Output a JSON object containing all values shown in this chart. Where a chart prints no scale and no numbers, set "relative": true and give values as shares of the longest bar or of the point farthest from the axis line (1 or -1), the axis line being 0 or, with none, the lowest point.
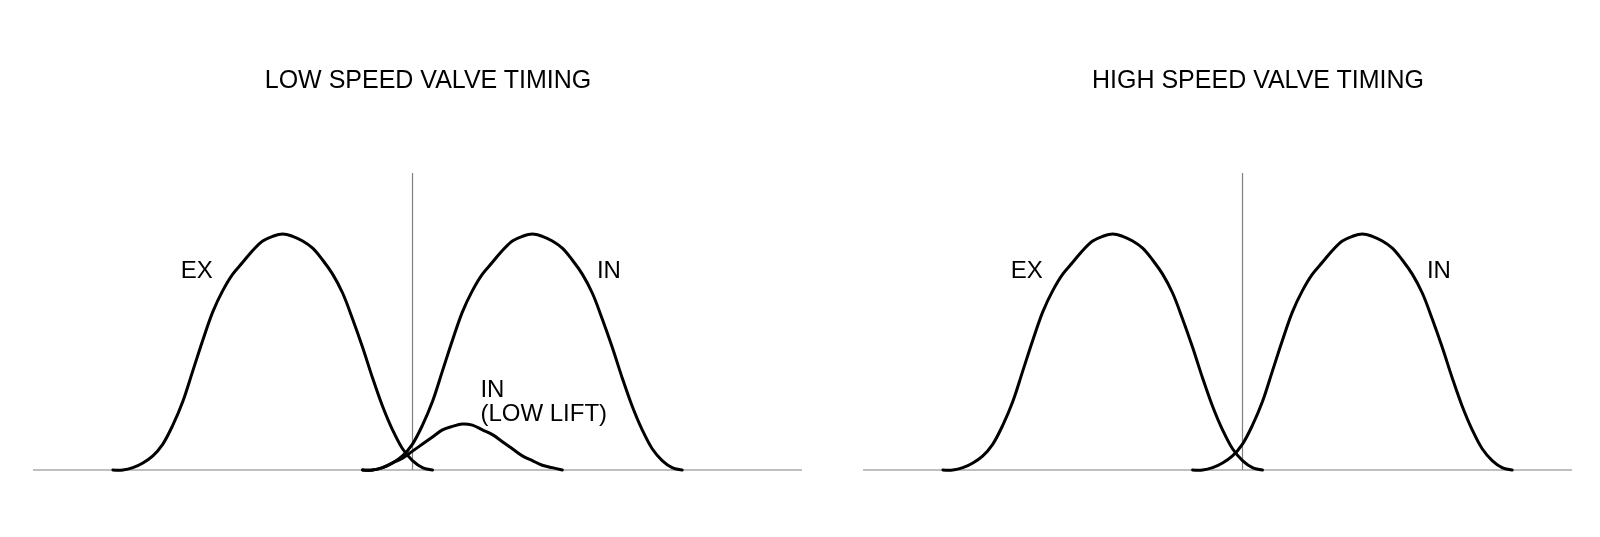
{
  "chart_data": [
    {
      "type": "line",
      "title": "LOW SPEED VALVE TIMING",
      "relative": true,
      "categories": [
        null,
        null,
        null,
        null,
        null,
        null,
        null,
        null,
        null,
        null,
        null,
        null,
        null,
        null,
        null,
        null,
        null,
        null,
        null,
        null,
        null,
        null,
        null,
        null,
        null,
        null,
        null,
        null,
        null,
        null,
        null,
        null,
        null,
        null,
        null,
        null,
        null,
        null,
        null,
        null,
        null,
        null,
        null,
        null,
        null,
        null,
        null,
        null,
        null,
        null,
        null,
        null,
        null,
        null,
        null,
        null,
        null,
        null,
        null,
        null,
        null,
        null,
        null,
        null,
        null,
        null,
        null,
        null,
        null,
        null,
        null,
        null,
        null,
        null,
        null,
        null,
        null,
        null
      ],
      "series": [
        {
          "name": "EX",
          "color": "#000000",
          "values": [
            null,
            null,
            null,
            null,
            null,
            null,
            null,
            null,
            0,
            0,
            0.01,
            0.03,
            0.06,
            0.11,
            0.19,
            0.29,
            0.42,
            0.55,
            0.67,
            0.76,
            0.83,
            0.88,
            0.93,
            0.97,
            0.99,
            1,
            0.99,
            0.97,
            0.94,
            0.89,
            0.83,
            0.75,
            0.64,
            0.52,
            0.39,
            0.27,
            0.17,
            0.09,
            0.04,
            0.01,
            0,
            null,
            null,
            null,
            null,
            null,
            null,
            null,
            null,
            null,
            null,
            null,
            null,
            null,
            null,
            null,
            null,
            null,
            null,
            null,
            null,
            null,
            null,
            null,
            null,
            null,
            null,
            null,
            null,
            null,
            null,
            null,
            null,
            null,
            null,
            null,
            null,
            null
          ]
        },
        {
          "name": "IN",
          "color": "#000000",
          "values": [
            null,
            null,
            null,
            null,
            null,
            null,
            null,
            null,
            null,
            null,
            null,
            null,
            null,
            null,
            null,
            null,
            null,
            null,
            null,
            null,
            null,
            null,
            null,
            null,
            null,
            null,
            null,
            null,
            null,
            null,
            null,
            null,
            null,
            0,
            0,
            0.01,
            0.03,
            0.06,
            0.11,
            0.19,
            0.29,
            0.42,
            0.55,
            0.67,
            0.76,
            0.83,
            0.88,
            0.93,
            0.97,
            0.99,
            1,
            0.99,
            0.97,
            0.94,
            0.89,
            0.83,
            0.75,
            0.64,
            0.52,
            0.39,
            0.27,
            0.17,
            0.09,
            0.04,
            0.01,
            0,
            null,
            null,
            null,
            null,
            null,
            null,
            null,
            null,
            null,
            null,
            null,
            null
          ]
        },
        {
          "name": "IN (LOW LIFT)",
          "color": "#000000",
          "values": [
            null,
            null,
            null,
            null,
            null,
            null,
            null,
            null,
            null,
            null,
            null,
            null,
            null,
            null,
            null,
            null,
            null,
            null,
            null,
            null,
            null,
            null,
            null,
            null,
            null,
            null,
            null,
            null,
            null,
            null,
            null,
            null,
            null,
            0,
            0,
            0.01,
            0.03,
            0.05,
            0.08,
            0.11,
            0.14,
            0.17,
            0.185,
            0.195,
            0.19,
            0.17,
            0.15,
            0.12,
            0.09,
            0.06,
            0.04,
            0.02,
            0.01,
            0,
            null,
            null,
            null,
            null,
            null,
            null,
            null,
            null,
            null,
            null,
            null,
            null,
            null,
            null,
            null,
            null,
            null,
            null,
            null,
            null,
            null,
            null,
            null,
            null
          ]
        }
      ]
    },
    {
      "type": "line",
      "title": "HIGH SPEED VALVE TIMING",
      "relative": true,
      "categories": [
        null,
        null,
        null,
        null,
        null,
        null,
        null,
        null,
        null,
        null,
        null,
        null,
        null,
        null,
        null,
        null,
        null,
        null,
        null,
        null,
        null,
        null,
        null,
        null,
        null,
        null,
        null,
        null,
        null,
        null,
        null,
        null,
        null,
        null,
        null,
        null,
        null,
        null,
        null,
        null,
        null,
        null,
        null,
        null,
        null,
        null,
        null,
        null,
        null,
        null,
        null,
        null,
        null,
        null,
        null,
        null,
        null,
        null,
        null,
        null,
        null,
        null,
        null,
        null,
        null,
        null,
        null,
        null,
        null,
        null,
        null,
        null
      ],
      "series": [
        {
          "name": "EX",
          "color": "#000000",
          "values": [
            null,
            null,
            null,
            null,
            null,
            null,
            null,
            null,
            0,
            0,
            0.01,
            0.03,
            0.06,
            0.11,
            0.19,
            0.29,
            0.42,
            0.55,
            0.67,
            0.76,
            0.83,
            0.88,
            0.93,
            0.97,
            0.99,
            1,
            0.99,
            0.97,
            0.94,
            0.89,
            0.83,
            0.75,
            0.64,
            0.52,
            0.39,
            0.27,
            0.17,
            0.09,
            0.04,
            0.01,
            0,
            null,
            null,
            null,
            null,
            null,
            null,
            null,
            null,
            null,
            null,
            null,
            null,
            null,
            null,
            null,
            null,
            null,
            null,
            null,
            null,
            null,
            null,
            null,
            null,
            null,
            null,
            null,
            null,
            null,
            null,
            null
          ]
        },
        {
          "name": "IN",
          "color": "#000000",
          "values": [
            null,
            null,
            null,
            null,
            null,
            null,
            null,
            null,
            null,
            null,
            null,
            null,
            null,
            null,
            null,
            null,
            null,
            null,
            null,
            null,
            null,
            null,
            null,
            null,
            null,
            null,
            null,
            null,
            null,
            null,
            null,
            null,
            null,
            0,
            0,
            0.01,
            0.03,
            0.06,
            0.11,
            0.19,
            0.29,
            0.42,
            0.55,
            0.67,
            0.76,
            0.83,
            0.88,
            0.93,
            0.97,
            0.99,
            1,
            0.99,
            0.97,
            0.94,
            0.89,
            0.83,
            0.75,
            0.64,
            0.52,
            0.39,
            0.27,
            0.17,
            0.09,
            0.04,
            0.01,
            0,
            null,
            null,
            null,
            null,
            null,
            null
          ]
        }
      ]
    }
  ]
}
